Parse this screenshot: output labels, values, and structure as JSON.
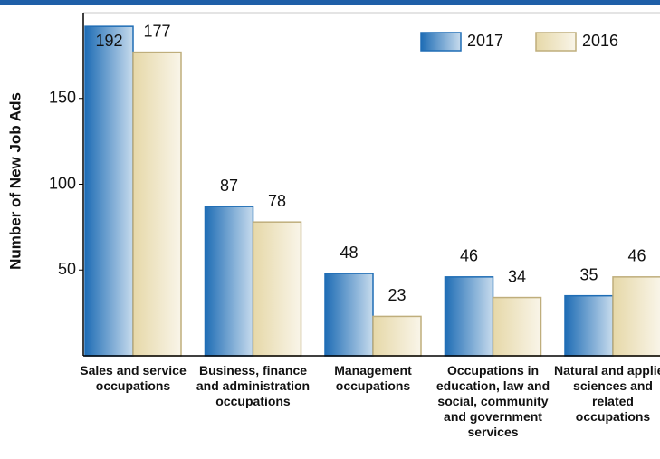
{
  "chart_data": {
    "type": "bar",
    "y_label": "Number of New Job Ads",
    "categories": [
      "Sales and service occupations",
      "Business, finance and administration occupations",
      "Management occupations",
      "Occupations in education, law and social, community and government services",
      "Natural and applied sciences and related occupations"
    ],
    "series": [
      {
        "name": "2017",
        "color": "#1f6db5",
        "values": [
          192,
          87,
          48,
          46,
          35
        ]
      },
      {
        "name": "2016",
        "color": "#e6d8a8",
        "values": [
          177,
          78,
          23,
          34,
          46
        ]
      }
    ],
    "ylim": [
      0,
      200
    ],
    "yticks": [
      50,
      100,
      150
    ],
    "grid": false,
    "legend": "top-right"
  }
}
